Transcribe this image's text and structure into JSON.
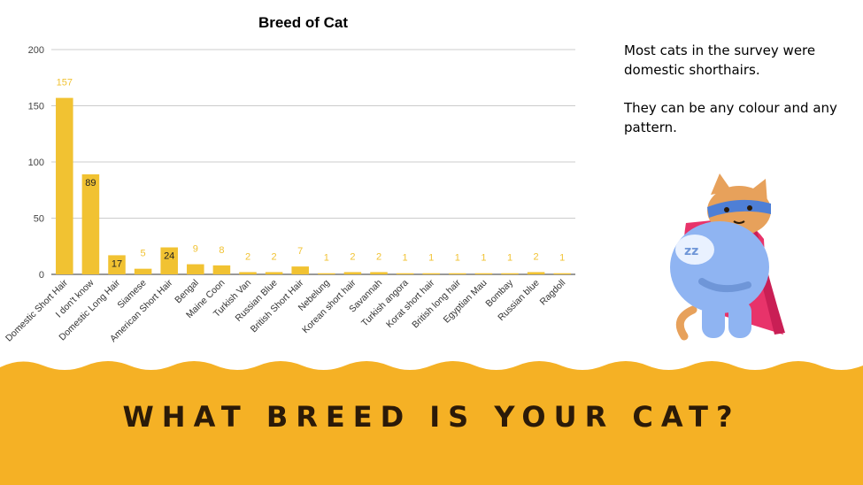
{
  "chart_data": {
    "type": "bar",
    "title": "Breed of Cat",
    "xlabel": "",
    "ylabel": "",
    "ylim": [
      0,
      200
    ],
    "yticks": [
      0,
      50,
      100,
      150,
      200
    ],
    "grid": true,
    "legend": "none",
    "bar_color": "#f1c232",
    "categories": [
      "Domestic Short Hair",
      "I don't know",
      "Domestic Long Hair",
      "Siamese",
      "American Short Hair",
      "Bengal",
      "Maine Coon",
      "Turkish Van",
      "Russian Blue",
      "British Short Hair",
      "Nebelung",
      "Korean short hair",
      "Savannah",
      "Turkish angora",
      "Korat short hair",
      "British long hair",
      "Egyptian Mau",
      "Bombay",
      "Russian blue",
      "Ragdoll"
    ],
    "values": [
      157,
      89,
      17,
      5,
      24,
      9,
      8,
      2,
      2,
      7,
      1,
      2,
      2,
      1,
      1,
      1,
      1,
      1,
      2,
      1
    ]
  },
  "side_text": {
    "paragraph1": "Most cats in the survey were domestic shorthairs.",
    "paragraph2": "They can be any colour and any pattern."
  },
  "banner": {
    "title": "WHAT BREED IS YOUR CAT?",
    "color": "#f5b125"
  }
}
